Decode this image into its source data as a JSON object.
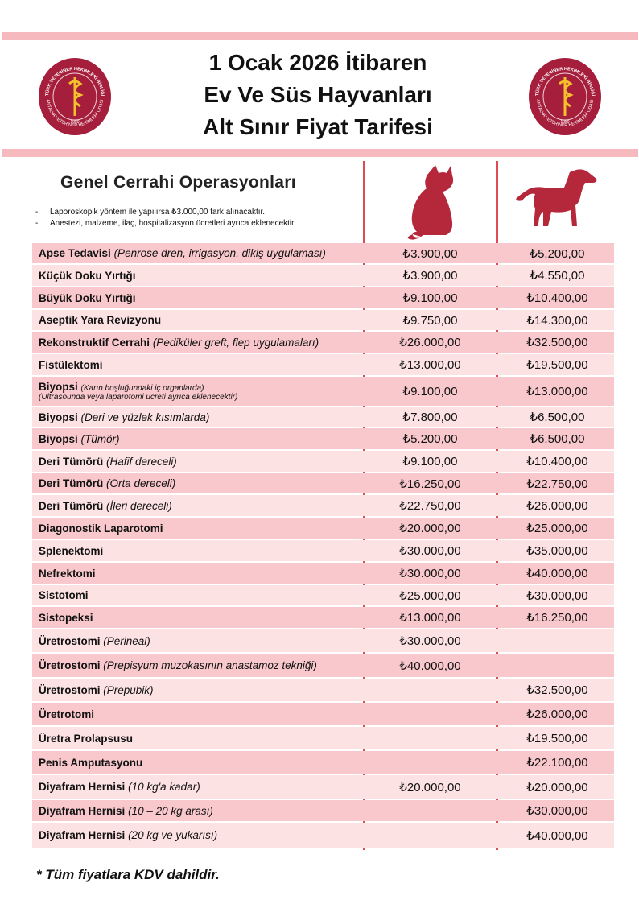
{
  "header": {
    "title_lines": [
      "1 Ocak 2026 İtibaren",
      "Ev Ve Süs Hayvanları",
      "Alt Sınır Fiyat Tarifesi"
    ],
    "logo": {
      "top": "TÜRK VETERİNER HEKİMLERİ BİRLİĞİ",
      "bottom": "ANTALYA VETERİNER HEKİMLERİ ODASI",
      "year": "1980"
    }
  },
  "section": {
    "title": "Genel Cerrahi Operasyonları",
    "notes": [
      "Laporoskopik yöntem ile yapılırsa ₺3.000,00 fark alınacaktır.",
      "Anestezi, malzeme, ilaç, hospitalizasyon ücretleri ayrıca eklenecektir."
    ]
  },
  "table": {
    "rows": [
      {
        "name": "Apse Tedavisi",
        "note": "(Penrose dren, irrigasyon, dikiş uygulaması)",
        "cat": "₺3.900,00",
        "dog": "₺5.200,00"
      },
      {
        "name": "Küçük Doku Yırtığı",
        "cat": "₺3.900,00",
        "dog": "₺4.550,00"
      },
      {
        "name": "Büyük Doku Yırtığı",
        "cat": "₺9.100,00",
        "dog": "₺10.400,00"
      },
      {
        "name": "Aseptik Yara Revizyonu",
        "cat": "₺9.750,00",
        "dog": "₺14.300,00"
      },
      {
        "name": "Rekonstruktif Cerrahi",
        "note": "(Pediküler greft, flep uygulamaları)",
        "cat": "₺26.000,00",
        "dog": "₺32.500,00"
      },
      {
        "name": "Fistülektomi",
        "cat": "₺13.000,00",
        "dog": "₺19.500,00"
      },
      {
        "name": "Biyopsi",
        "small_note": "(Karın boşluğundaki iç organlarda)",
        "small_note2": "(Ultrasounda veya laparotomi ücreti ayrıca eklenecektir)",
        "cat": "₺9.100,00",
        "dog": "₺13.000,00"
      },
      {
        "name": "Biyopsi",
        "note": "(Deri ve yüzlek kısımlarda)",
        "cat": "₺7.800,00",
        "dog": "₺6.500,00"
      },
      {
        "name": "Biyopsi",
        "note": "(Tümör)",
        "cat": "₺5.200,00",
        "dog": "₺6.500,00"
      },
      {
        "name": "Deri Tümörü",
        "note": "(Hafif dereceli)",
        "cat": "₺9.100,00",
        "dog": "₺10.400,00"
      },
      {
        "name": "Deri Tümörü",
        "note": "(Orta dereceli)",
        "cat": "₺16.250,00",
        "dog": "₺22.750,00"
      },
      {
        "name": "Deri Tümörü",
        "note": "(İleri dereceli)",
        "cat": "₺22.750,00",
        "dog": "₺26.000,00"
      },
      {
        "name": "Diagonostik Laparotomi",
        "cat": "₺20.000,00",
        "dog": "₺25.000,00"
      },
      {
        "name": "Splenektomi",
        "cat": "₺30.000,00",
        "dog": "₺35.000,00"
      },
      {
        "name": "Nefrektomi",
        "cat": "₺30.000,00",
        "dog": "₺40.000,00"
      },
      {
        "name": "Sistotomi",
        "cat": "₺25.000,00",
        "dog": "₺30.000,00"
      },
      {
        "name": "Sistopeksi",
        "cat": "₺13.000,00",
        "dog": "₺16.250,00"
      },
      {
        "name": "Üretrostomi",
        "note": "(Perineal)",
        "cat": "₺30.000,00"
      },
      {
        "name": "Üretrostomi",
        "note": "(Prepisyum muzokasının anastamoz tekniği)",
        "cat": "₺40.000,00"
      },
      {
        "name": "Üretrostomi",
        "note": "(Prepubik)",
        "dog": "₺32.500,00"
      },
      {
        "name": "Üretrotomi",
        "dog": "₺26.000,00"
      },
      {
        "name": "Üretra Prolapsusu",
        "dog": "₺19.500,00"
      },
      {
        "name": "Penis Amputasyonu",
        "dog": "₺22.100,00"
      },
      {
        "name": "Diyafram Hernisi",
        "note": "(10 kg'a kadar)",
        "cat": "₺20.000,00",
        "dog": "₺20.000,00"
      },
      {
        "name": "Diyafram Hernisi",
        "note": "(10 – 20 kg arası)",
        "dog": "₺30.000,00"
      },
      {
        "name": "Diyafram Hernisi",
        "note": "(20 kg ve yukarısı)",
        "dog": "₺40.000,00"
      }
    ]
  },
  "footer": {
    "note": "* Tüm fiyatlara KDV dahildir."
  }
}
